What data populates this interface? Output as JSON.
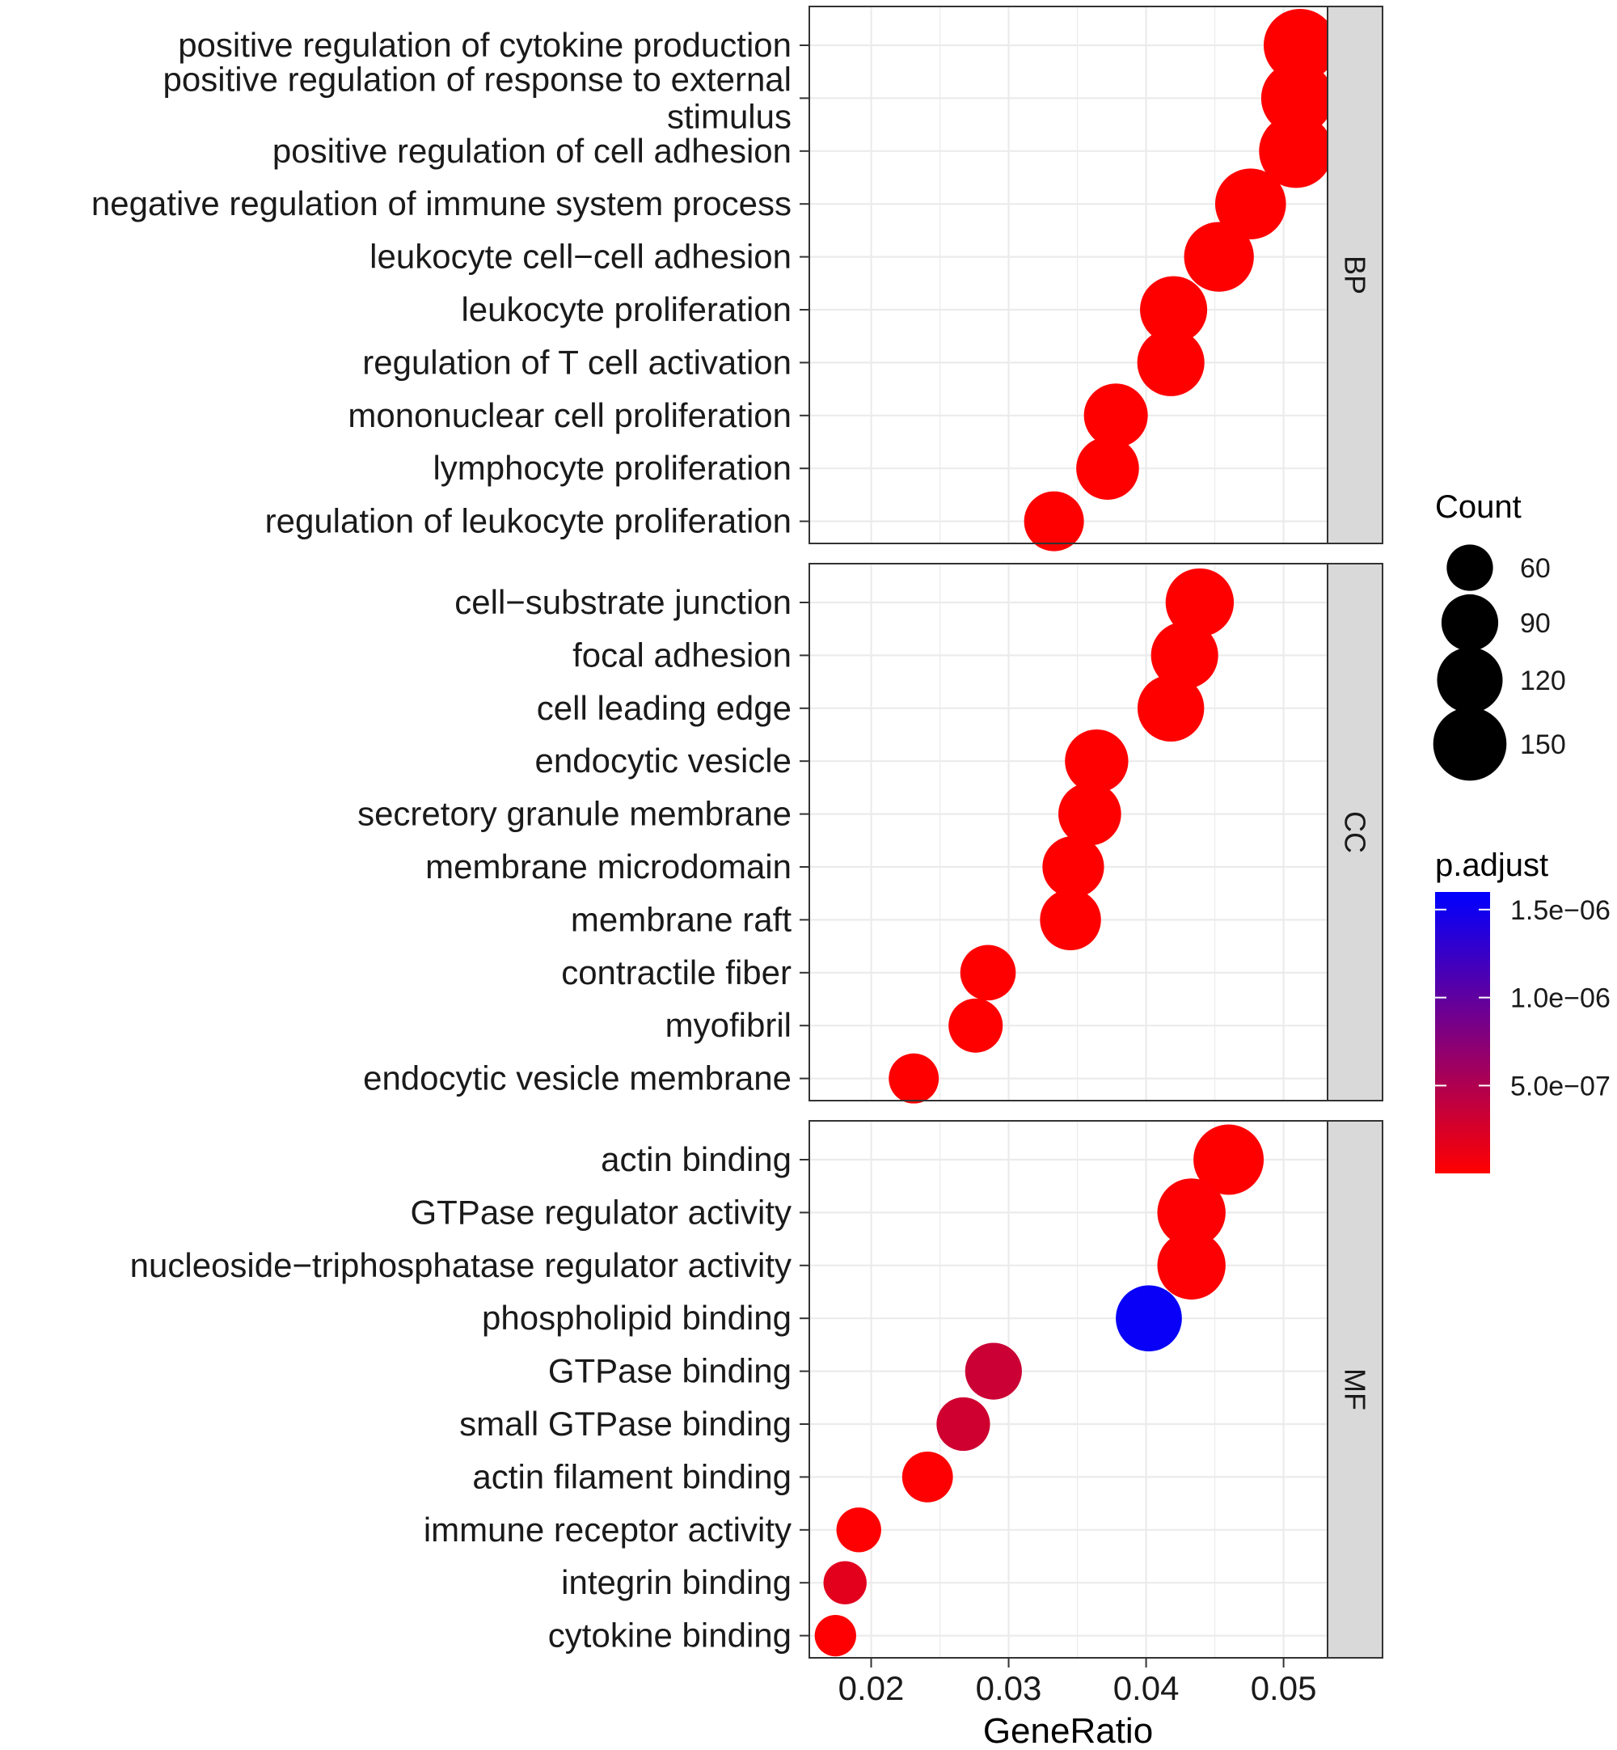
{
  "chart_data": {
    "type": "scatter",
    "x_axis": {
      "title": "GeneRatio",
      "range": [
        0.0155,
        0.0532
      ],
      "ticks": [
        0.02,
        0.03,
        0.04,
        0.05
      ],
      "tick_labels": [
        "0.02",
        "0.03",
        "0.04",
        "0.05"
      ],
      "minor_ticks": [
        0.025,
        0.035,
        0.045
      ]
    },
    "grid": true,
    "facets": [
      {
        "name": "BP",
        "terms": [
          {
            "label": [
              "positive regulation of cytokine production"
            ],
            "x": 0.0512,
            "count": 148,
            "p_adjust": 1e-09
          },
          {
            "label": [
              "positive regulation of response to external",
              "stimulus"
            ],
            "x": 0.051,
            "count": 146,
            "p_adjust": 1e-09
          },
          {
            "label": [
              "positive regulation of cell adhesion"
            ],
            "x": 0.0509,
            "count": 152,
            "p_adjust": 1e-09
          },
          {
            "label": [
              "negative regulation of immune system process"
            ],
            "x": 0.0476,
            "count": 140,
            "p_adjust": 1e-09
          },
          {
            "label": [
              "leukocyte cell−cell adhesion"
            ],
            "x": 0.0453,
            "count": 136,
            "p_adjust": 1e-09
          },
          {
            "label": [
              "leukocyte proliferation"
            ],
            "x": 0.042,
            "count": 126,
            "p_adjust": 1e-09
          },
          {
            "label": [
              "regulation of T cell activation"
            ],
            "x": 0.0418,
            "count": 126,
            "p_adjust": 1e-09
          },
          {
            "label": [
              "mononuclear cell proliferation"
            ],
            "x": 0.0378,
            "count": 114,
            "p_adjust": 1e-09
          },
          {
            "label": [
              "lymphocyte proliferation"
            ],
            "x": 0.0372,
            "count": 110,
            "p_adjust": 1e-09
          },
          {
            "label": [
              "regulation of leukocyte proliferation"
            ],
            "x": 0.0333,
            "count": 100,
            "p_adjust": 1e-09
          }
        ]
      },
      {
        "name": "CC",
        "terms": [
          {
            "label": [
              "cell−substrate junction"
            ],
            "x": 0.0439,
            "count": 130,
            "p_adjust": 1e-09
          },
          {
            "label": [
              "focal adhesion"
            ],
            "x": 0.0428,
            "count": 126,
            "p_adjust": 1e-09
          },
          {
            "label": [
              "cell leading edge"
            ],
            "x": 0.0418,
            "count": 124,
            "p_adjust": 1e-09
          },
          {
            "label": [
              "endocytic vesicle"
            ],
            "x": 0.0364,
            "count": 112,
            "p_adjust": 1e-09
          },
          {
            "label": [
              "secretory granule membrane"
            ],
            "x": 0.0359,
            "count": 110,
            "p_adjust": 1e-09
          },
          {
            "label": [
              "membrane microdomain"
            ],
            "x": 0.0347,
            "count": 106,
            "p_adjust": 1e-09
          },
          {
            "label": [
              "membrane raft"
            ],
            "x": 0.0345,
            "count": 104,
            "p_adjust": 1e-09
          },
          {
            "label": [
              "contractile fiber"
            ],
            "x": 0.0285,
            "count": 86,
            "p_adjust": 1e-09
          },
          {
            "label": [
              "myofibril"
            ],
            "x": 0.0276,
            "count": 82,
            "p_adjust": 1e-09
          },
          {
            "label": [
              "endocytic vesicle membrane"
            ],
            "x": 0.0231,
            "count": 70,
            "p_adjust": 1e-09
          }
        ]
      },
      {
        "name": "MF",
        "terms": [
          {
            "label": [
              "actin binding"
            ],
            "x": 0.046,
            "count": 138,
            "p_adjust": 1e-09
          },
          {
            "label": [
              "GTPase regulator activity"
            ],
            "x": 0.0433,
            "count": 130,
            "p_adjust": 2e-08
          },
          {
            "label": [
              "nucleoside−triphosphatase regulator activity"
            ],
            "x": 0.0433,
            "count": 130,
            "p_adjust": 2e-08
          },
          {
            "label": [
              "phospholipid binding"
            ],
            "x": 0.0402,
            "count": 122,
            "p_adjust": 1.55e-06
          },
          {
            "label": [
              "GTPase binding"
            ],
            "x": 0.0289,
            "count": 90,
            "p_adjust": 3.3e-07
          },
          {
            "label": [
              "small GTPase binding"
            ],
            "x": 0.0267,
            "count": 80,
            "p_adjust": 3e-07
          },
          {
            "label": [
              "actin filament binding"
            ],
            "x": 0.0241,
            "count": 72,
            "p_adjust": 1e-08
          },
          {
            "label": [
              "immune receptor activity"
            ],
            "x": 0.0191,
            "count": 56,
            "p_adjust": 1e-08
          },
          {
            "label": [
              "integrin binding"
            ],
            "x": 0.0181,
            "count": 52,
            "p_adjust": 1.8e-07
          },
          {
            "label": [
              "cytokine binding"
            ],
            "x": 0.0174,
            "count": 48,
            "p_adjust": 1e-08
          }
        ]
      }
    ],
    "legend_size": {
      "title": "Count",
      "breaks": [
        60,
        90,
        120,
        150
      ],
      "labels": [
        "60",
        "90",
        "120",
        "150"
      ]
    },
    "legend_color": {
      "title": "p.adjust",
      "range": [
        1e-09,
        1.6e-06
      ],
      "low_color": "#ff0000",
      "high_color": "#0000ff",
      "breaks": [
        5e-07,
        1e-06,
        1.5e-06
      ],
      "labels": [
        "5.0e−07",
        "1.0e−06",
        "1.5e−06"
      ]
    }
  }
}
